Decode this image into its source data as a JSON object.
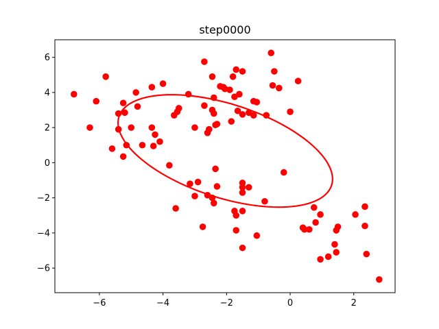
{
  "chart_data": {
    "type": "scatter",
    "title": "step0000",
    "xlabel": "",
    "ylabel": "",
    "xlim": [
      -7.4,
      3.3
    ],
    "ylim": [
      -7.4,
      7.0
    ],
    "xticks": [
      -6,
      -4,
      -2,
      0,
      2
    ],
    "yticks": [
      -6,
      -4,
      -2,
      0,
      2,
      4,
      6
    ],
    "xtick_labels": [
      "−6",
      "−4",
      "−2",
      "0",
      "2"
    ],
    "ytick_labels": [
      "−6",
      "−4",
      "−2",
      "0",
      "2",
      "4",
      "6"
    ],
    "grid": false,
    "marker_color": "#ff0000",
    "ellipse_color": "#ff0000",
    "series": [
      {
        "points": [
          [
            -6.8,
            3.9
          ],
          [
            -6.3,
            2.0
          ],
          [
            -6.1,
            3.5
          ],
          [
            -5.8,
            4.9
          ],
          [
            -5.6,
            0.8
          ],
          [
            -5.4,
            2.8
          ],
          [
            -5.4,
            1.9
          ],
          [
            -5.25,
            3.4
          ],
          [
            -5.25,
            0.35
          ],
          [
            -5.2,
            2.85
          ],
          [
            -5.15,
            1.0
          ],
          [
            -5.0,
            2.0
          ],
          [
            -4.85,
            4.0
          ],
          [
            -4.8,
            3.2
          ],
          [
            -4.65,
            1.0
          ],
          [
            -4.35,
            4.3
          ],
          [
            -4.35,
            2.0
          ],
          [
            -4.3,
            0.95
          ],
          [
            -4.25,
            1.6
          ],
          [
            -4.1,
            1.2
          ],
          [
            -4.0,
            4.5
          ],
          [
            -3.8,
            -0.15
          ],
          [
            -3.65,
            2.7
          ],
          [
            -3.55,
            2.9
          ],
          [
            -3.5,
            3.1
          ],
          [
            -3.6,
            -2.6
          ],
          [
            -3.2,
            3.9
          ],
          [
            -3.15,
            -1.2
          ],
          [
            -3.0,
            2.0
          ],
          [
            -3.0,
            -1.9
          ],
          [
            -2.9,
            -1.1
          ],
          [
            -2.75,
            -3.65
          ],
          [
            -2.7,
            5.75
          ],
          [
            -2.7,
            3.25
          ],
          [
            -2.6,
            1.7
          ],
          [
            -2.55,
            1.9
          ],
          [
            -2.6,
            -1.85
          ],
          [
            -2.45,
            4.9
          ],
          [
            -2.45,
            3.0
          ],
          [
            -2.4,
            2.8
          ],
          [
            -2.4,
            3.7
          ],
          [
            -2.35,
            2.15
          ],
          [
            -2.3,
            2.2
          ],
          [
            -2.35,
            -0.35
          ],
          [
            -2.3,
            -1.35
          ],
          [
            -2.45,
            -2.0
          ],
          [
            -2.4,
            -2.3
          ],
          [
            -2.2,
            4.35
          ],
          [
            -2.1,
            4.3
          ],
          [
            -2.05,
            4.2
          ],
          [
            -1.9,
            4.15
          ],
          [
            -1.85,
            2.35
          ],
          [
            -1.8,
            4.9
          ],
          [
            -1.75,
            3.75
          ],
          [
            -1.7,
            5.3
          ],
          [
            -1.6,
            3.9
          ],
          [
            -1.65,
            2.95
          ],
          [
            -1.5,
            2.75
          ],
          [
            -1.5,
            5.2
          ],
          [
            -1.3,
            2.85
          ],
          [
            -1.15,
            2.7
          ],
          [
            -1.15,
            3.5
          ],
          [
            -1.05,
            3.45
          ],
          [
            -1.5,
            -1.15
          ],
          [
            -1.5,
            -1.4
          ],
          [
            -1.5,
            -1.7
          ],
          [
            -1.5,
            -2.75
          ],
          [
            -1.3,
            -1.4
          ],
          [
            -1.75,
            -2.75
          ],
          [
            -1.7,
            -3.0
          ],
          [
            -1.7,
            -3.85
          ],
          [
            -1.5,
            -4.85
          ],
          [
            -1.05,
            -4.15
          ],
          [
            -0.8,
            -2.2
          ],
          [
            -0.75,
            2.7
          ],
          [
            -0.2,
            -0.55
          ],
          [
            -0.6,
            6.25
          ],
          [
            -0.55,
            4.4
          ],
          [
            -0.5,
            5.2
          ],
          [
            -0.35,
            4.25
          ],
          [
            0.0,
            2.9
          ],
          [
            0.25,
            4.65
          ],
          [
            0.4,
            -3.7
          ],
          [
            0.45,
            -3.8
          ],
          [
            0.6,
            -3.8
          ],
          [
            0.75,
            -2.55
          ],
          [
            0.8,
            -3.4
          ],
          [
            0.95,
            -2.95
          ],
          [
            0.95,
            -5.5
          ],
          [
            1.2,
            -5.35
          ],
          [
            1.4,
            -4.65
          ],
          [
            1.45,
            -5.1
          ],
          [
            1.45,
            -3.85
          ],
          [
            1.5,
            -3.65
          ],
          [
            2.05,
            -2.95
          ],
          [
            2.35,
            -2.5
          ],
          [
            2.35,
            -3.6
          ],
          [
            2.4,
            -5.2
          ],
          [
            2.8,
            -6.65
          ]
        ]
      }
    ],
    "ellipse": {
      "center": [
        -2.04,
        0.67
      ],
      "semi_axes": [
        4.03,
        2.32
      ],
      "rotation_deg": -42
    }
  }
}
